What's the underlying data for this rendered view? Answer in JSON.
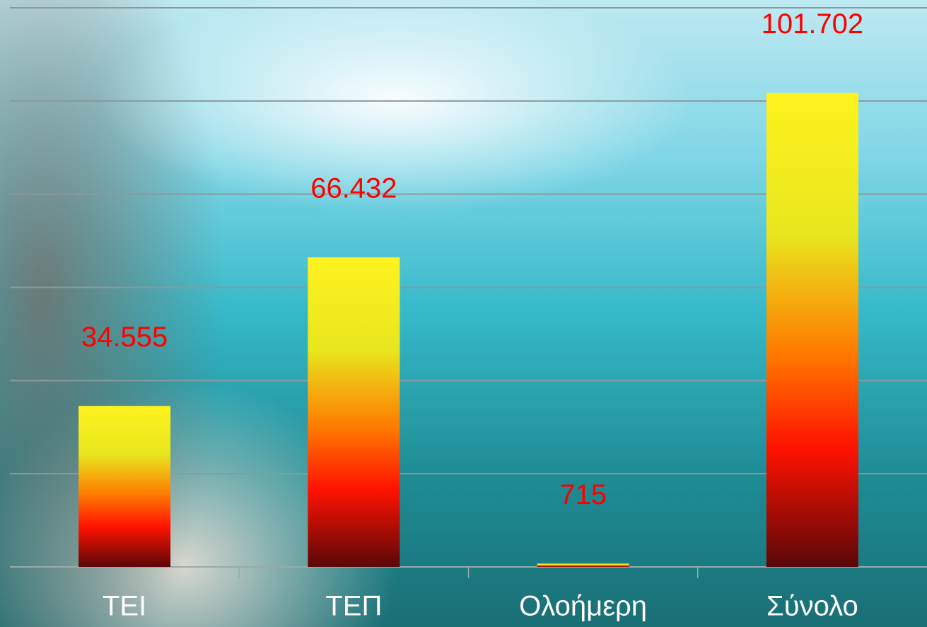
{
  "chart_data": {
    "type": "bar",
    "categories": [
      "ΤΕΙ",
      "ΤΕΠ",
      "Ολοήμερη",
      "Σύνολο"
    ],
    "values": [
      34555,
      66432,
      715,
      101702
    ],
    "value_labels": [
      "34.555",
      "66.432",
      "715",
      "101.702"
    ],
    "colors": [
      "#fff21e",
      "#e8e61e",
      "#ff7a00",
      "#ff1200",
      "#5a0808"
    ],
    "ylim": [
      0,
      120000
    ],
    "yticks": [
      0,
      20000,
      40000,
      60000,
      80000,
      100000,
      120000
    ],
    "grid": true
  }
}
